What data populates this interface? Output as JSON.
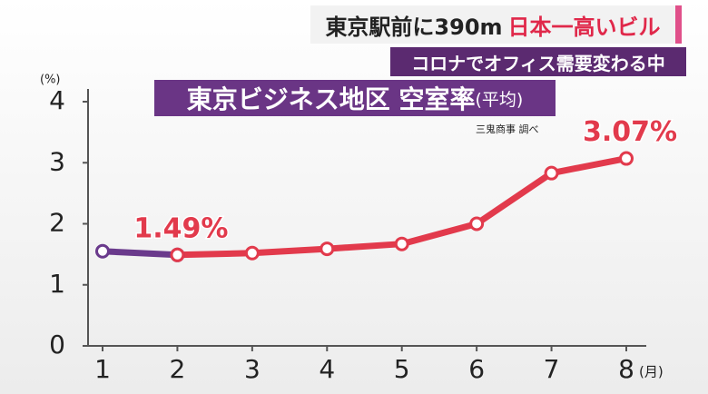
{
  "header": {
    "headline_1": "東京駅前に390m",
    "headline_2": "日本一高いビル",
    "subheadline": "コロナでオフィス需要変わる中"
  },
  "chart_data": {
    "type": "line",
    "title": "東京ビジネス地区 空室率",
    "subtitle": "(平均)",
    "source": "三鬼商事 調べ",
    "y_unit": "(%)",
    "x_unit": "(月)",
    "x": [
      1,
      2,
      3,
      4,
      5,
      6,
      7,
      8
    ],
    "xlim": [
      1,
      8
    ],
    "xticks": [
      1,
      2,
      3,
      4,
      5,
      6,
      7,
      8
    ],
    "ylim": [
      0,
      4
    ],
    "yticks": [
      0,
      1,
      2,
      3,
      4
    ],
    "series": [
      {
        "color": "#6a3a8c",
        "values": [
          1.55,
          1.49,
          null,
          null,
          null,
          null,
          null,
          null
        ]
      },
      {
        "color": "#e23a4c",
        "values": [
          null,
          1.49,
          1.52,
          1.59,
          1.67,
          2.0,
          2.83,
          3.07
        ],
        "value_labels": [
          null,
          "1.49%",
          null,
          null,
          null,
          null,
          null,
          "3.07%"
        ]
      }
    ]
  }
}
